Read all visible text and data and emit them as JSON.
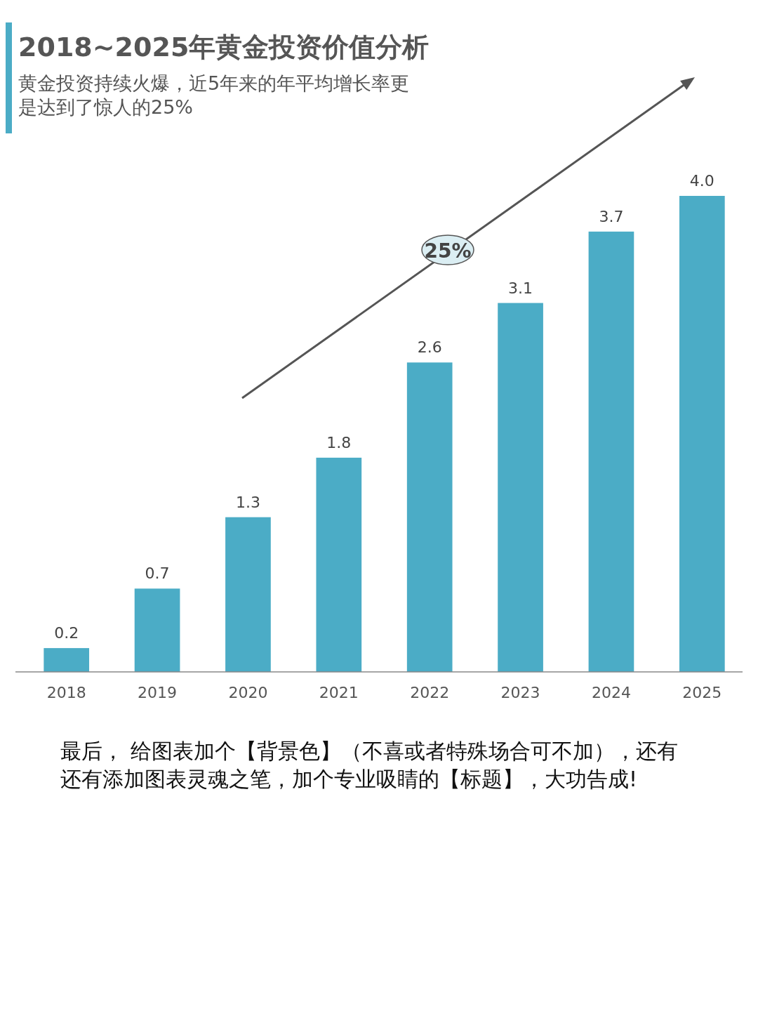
{
  "chart_data": {
    "type": "bar",
    "title": "2018~2025年黄金投资价值分析",
    "subtitle": "黄金投资持续火爆，近5年来的年平均增长率更是达到了惊人的25%",
    "categories": [
      "2018",
      "2019",
      "2020",
      "2021",
      "2022",
      "2023",
      "2024",
      "2025"
    ],
    "values": [
      0.2,
      0.7,
      1.3,
      1.8,
      2.6,
      3.1,
      3.7,
      4.0
    ],
    "value_labels": [
      "0.2",
      "0.7",
      "1.3",
      "1.8",
      "2.6",
      "3.1",
      "3.7",
      "4.0"
    ],
    "color": "#4bacc6",
    "relative": false,
    "annotations": [
      "25%",
      "最后， 给图表加个【背景色】（不喜或者特殊场合可不加），还有还有添加图表灵魂之笔，加个专业吸睛的【标题】，大功告成!"
    ]
  }
}
